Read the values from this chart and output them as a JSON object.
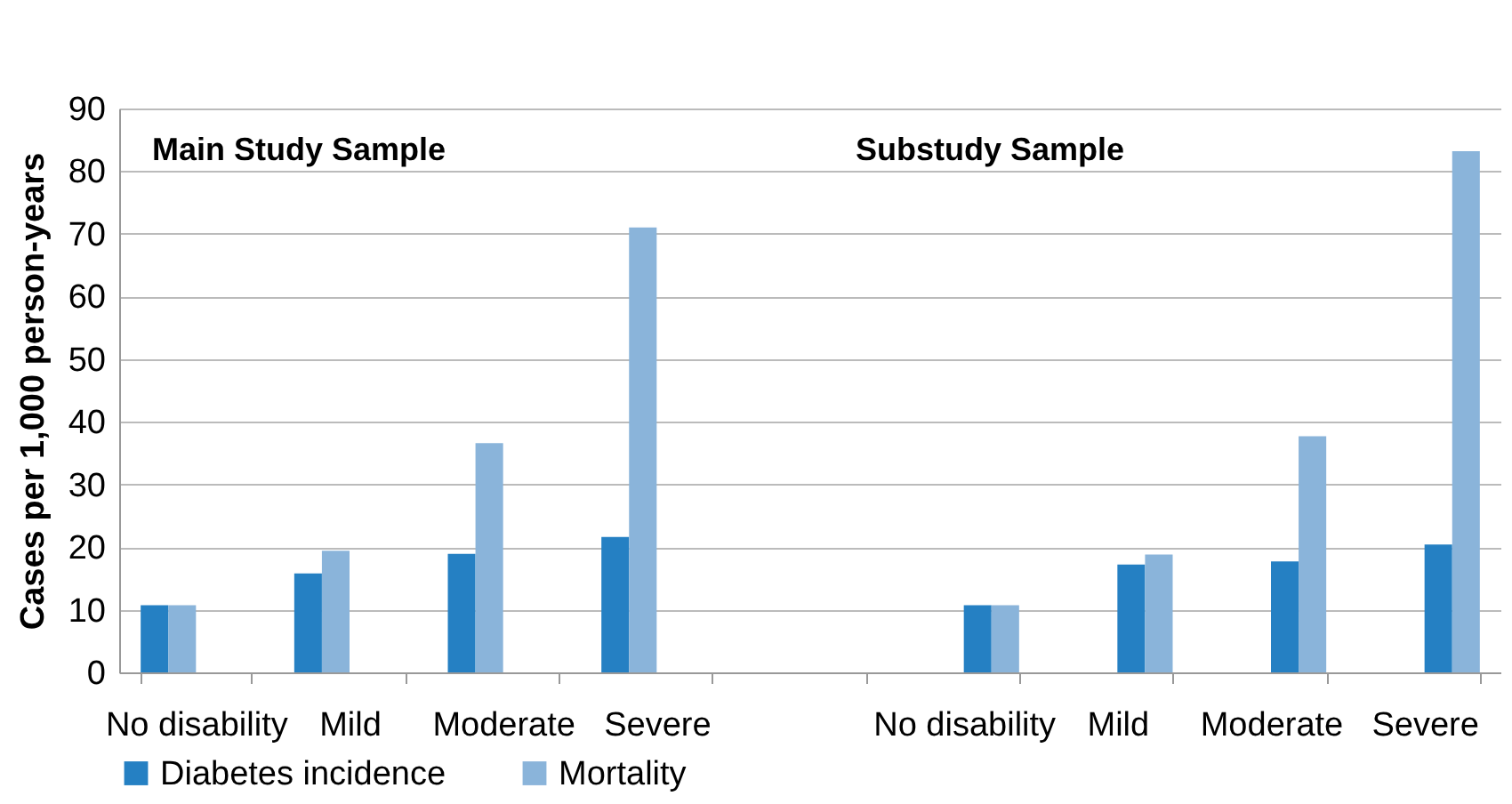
{
  "chart_data": {
    "type": "bar",
    "ylabel": "Cases per 1,000 person-years",
    "categories": [
      "No disability",
      "Mild",
      "Moderate",
      "Severe",
      null,
      "No disability",
      "Mild",
      "Moderate",
      "Severe"
    ],
    "series": [
      {
        "name": "Diabetes incidence",
        "color": "#2580c3",
        "values": [
          10.7,
          15.8,
          18.9,
          21.6,
          null,
          null,
          null,
          null,
          null
        ]
      },
      {
        "name": "Mortality",
        "color": "#8ab4da",
        "values": [
          10.7,
          19.4,
          36.6,
          71.0,
          null,
          null,
          null,
          null,
          null
        ]
      },
      {
        "color": "#2580c3",
        "values": [
          null,
          null,
          null,
          null,
          null,
          10.7,
          17.2,
          17.7,
          20.4
        ]
      },
      {
        "color": "#8ab4da",
        "values": [
          null,
          null,
          null,
          null,
          null,
          10.7,
          18.8,
          37.7,
          83.2
        ]
      }
    ],
    "annotations": [
      "Main Study Sample",
      "Substudy Sample"
    ],
    "ylim": [
      0,
      90
    ],
    "yticks": [
      0,
      10,
      20,
      30,
      40,
      50,
      60,
      70,
      80,
      90
    ],
    "grid": "y",
    "legend": "bottom"
  }
}
